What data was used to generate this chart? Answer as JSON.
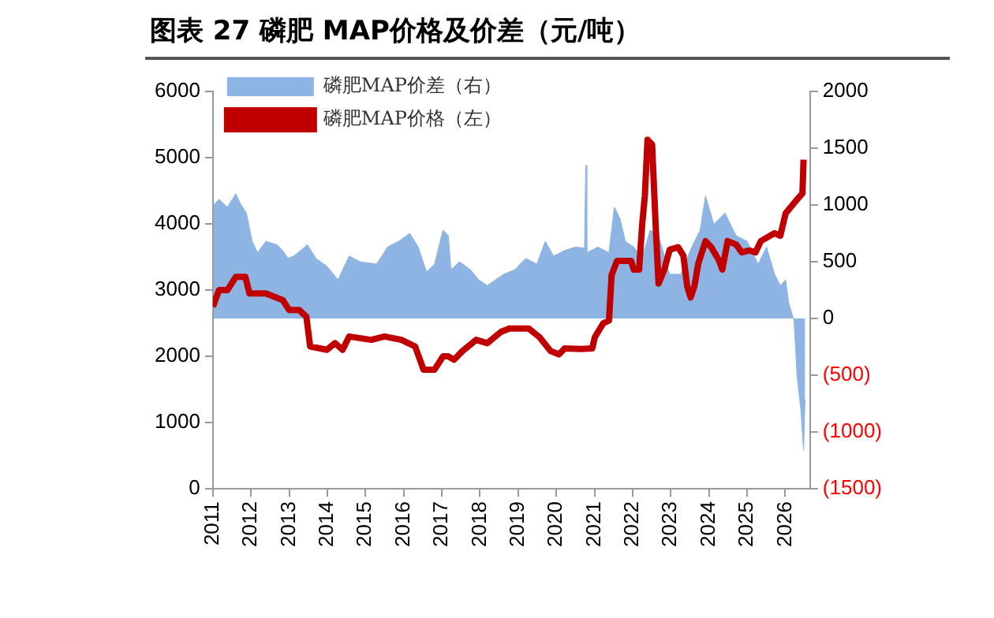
{
  "chart_data": {
    "type": "line",
    "title": "图表 27 磷肥 MAP价格及价差（元/吨）",
    "legend": "top",
    "grid": false,
    "xlim": [
      2011,
      2026.65
    ],
    "xticks": [
      2011,
      2012,
      2013,
      2014,
      2015,
      2016,
      2017,
      2018,
      2019,
      2020,
      2021,
      2022,
      2023,
      2024,
      2025,
      2026
    ],
    "ylim": [
      0,
      6000
    ],
    "yticks": [
      0,
      1000,
      2000,
      3000,
      4000,
      5000,
      6000
    ],
    "y2lim": [
      -1500,
      2000
    ],
    "y2ticks": [
      {
        "value": -1500,
        "label": "(1500)"
      },
      {
        "value": -1000,
        "label": "(1000)"
      },
      {
        "value": -500,
        "label": "(500)"
      },
      0,
      500,
      1000,
      1500,
      2000
    ],
    "series": [
      {
        "name": "磷肥MAP价差（右）",
        "type": "area",
        "axis": "y2",
        "color": "#8eb4e3",
        "x": [
          2011.02,
          2011.16,
          2011.38,
          2011.6,
          2011.74,
          2011.88,
          2012.03,
          2012.17,
          2012.39,
          2012.68,
          2012.83,
          2012.97,
          2013.12,
          2013.48,
          2013.7,
          2013.99,
          2014.28,
          2014.57,
          2014.86,
          2015.29,
          2015.58,
          2015.87,
          2016.16,
          2016.38,
          2016.6,
          2016.81,
          2017.03,
          2017.17,
          2017.24,
          2017.46,
          2017.75,
          2017.97,
          2018.19,
          2018.4,
          2018.62,
          2018.91,
          2019.2,
          2019.49,
          2019.71,
          2019.93,
          2020.22,
          2020.5,
          2020.74,
          2020.77,
          2020.8,
          2021.09,
          2021.38,
          2021.52,
          2021.67,
          2021.81,
          2022.03,
          2022.25,
          2022.46,
          2022.68,
          2022.97,
          2023.26,
          2023.55,
          2023.77,
          2023.91,
          2024.13,
          2024.42,
          2024.71,
          2025.0,
          2025.29,
          2025.51,
          2025.72,
          2025.87,
          2026.01,
          2026.09,
          2026.23,
          2026.31,
          2026.41,
          2026.48,
          2026.52
        ],
        "values": [
          1000,
          1050,
          980,
          1100,
          1000,
          930,
          680,
          580,
          680,
          650,
          600,
          530,
          550,
          650,
          530,
          460,
          340,
          550,
          500,
          480,
          630,
          680,
          750,
          630,
          410,
          480,
          780,
          730,
          430,
          500,
          430,
          340,
          290,
          340,
          390,
          430,
          530,
          480,
          680,
          550,
          600,
          630,
          620,
          1350,
          580,
          630,
          580,
          980,
          880,
          680,
          630,
          530,
          780,
          730,
          390,
          390,
          630,
          780,
          1080,
          830,
          930,
          730,
          680,
          480,
          630,
          390,
          290,
          340,
          140,
          -20,
          -510,
          -810,
          -1160,
          -710
        ]
      },
      {
        "name": "磷肥MAP价格（左）",
        "type": "line",
        "axis": "y",
        "color": "#c00000",
        "x": [
          2011.0,
          2011.16,
          2011.38,
          2011.6,
          2011.85,
          2011.96,
          2012.39,
          2012.83,
          2013.0,
          2013.26,
          2013.45,
          2013.55,
          2013.99,
          2014.2,
          2014.4,
          2014.57,
          2015.15,
          2015.5,
          2015.94,
          2016.3,
          2016.52,
          2016.81,
          2017.03,
          2017.17,
          2017.32,
          2017.54,
          2017.9,
          2018.19,
          2018.55,
          2018.77,
          2019.28,
          2019.56,
          2019.85,
          2020.07,
          2020.22,
          2020.65,
          2020.94,
          2021.01,
          2021.23,
          2021.38,
          2021.45,
          2021.59,
          2021.96,
          2022.03,
          2022.17,
          2022.25,
          2022.32,
          2022.39,
          2022.51,
          2022.61,
          2022.68,
          2022.83,
          2022.97,
          2023.19,
          2023.33,
          2023.43,
          2023.52,
          2023.62,
          2023.72,
          2023.91,
          2024.06,
          2024.27,
          2024.35,
          2024.49,
          2024.71,
          2024.86,
          2025.07,
          2025.22,
          2025.36,
          2025.72,
          2025.87,
          2026.01,
          2026.31,
          2026.45,
          2026.48
        ],
        "values": [
          2750,
          3000,
          3000,
          3200,
          3200,
          2950,
          2950,
          2850,
          2700,
          2700,
          2600,
          2150,
          2100,
          2200,
          2100,
          2300,
          2250,
          2300,
          2250,
          2150,
          1800,
          1800,
          2000,
          2000,
          1950,
          2080,
          2250,
          2200,
          2370,
          2420,
          2420,
          2290,
          2080,
          2030,
          2120,
          2110,
          2120,
          2290,
          2500,
          2540,
          3230,
          3440,
          3440,
          3310,
          3310,
          3990,
          4420,
          5270,
          5200,
          3900,
          3100,
          3310,
          3610,
          3650,
          3520,
          3060,
          2890,
          3060,
          3400,
          3740,
          3650,
          3440,
          3310,
          3740,
          3690,
          3570,
          3600,
          3570,
          3740,
          3860,
          3820,
          4160,
          4370,
          4460,
          4970
        ]
      }
    ]
  }
}
